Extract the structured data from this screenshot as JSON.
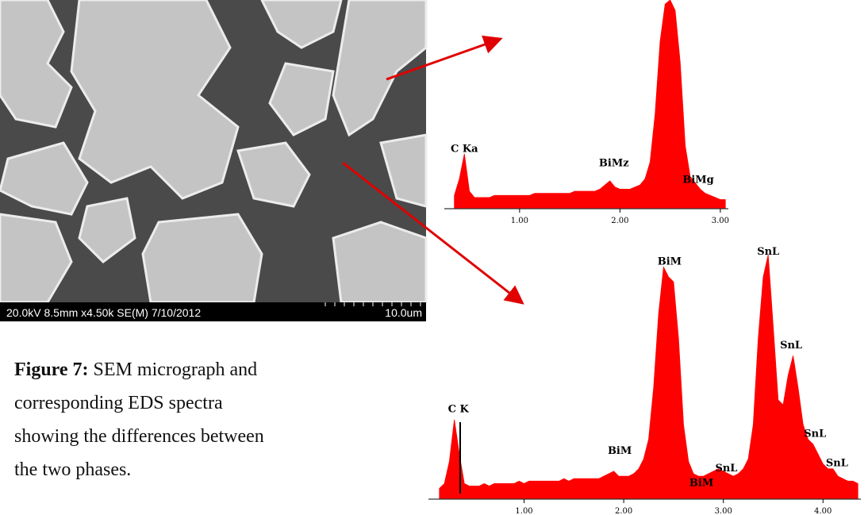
{
  "figure": {
    "label": "Figure 7:",
    "caption": "SEM micrograph and corresponding EDS spectra showing the differences between the two phases."
  },
  "micrograph": {
    "info": "20.0kV 8.5mm x4.50k SE(M) 7/10/2012",
    "scale": "10.0um"
  },
  "chart_data": [
    {
      "type": "area",
      "color": "#ff0000",
      "x": [
        0.35,
        0.4,
        0.45,
        0.5,
        0.55,
        0.6,
        0.65,
        0.7,
        0.75,
        0.8,
        0.85,
        0.9,
        0.95,
        1.0,
        1.05,
        1.1,
        1.15,
        1.2,
        1.25,
        1.3,
        1.35,
        1.4,
        1.45,
        1.5,
        1.55,
        1.6,
        1.65,
        1.7,
        1.75,
        1.8,
        1.85,
        1.9,
        1.95,
        2.0,
        2.05,
        2.1,
        2.15,
        2.2,
        2.25,
        2.3,
        2.35,
        2.4,
        2.45,
        2.5,
        2.55,
        2.6,
        2.65,
        2.7,
        2.75,
        2.8,
        2.85,
        2.9,
        2.95,
        3.0,
        3.05
      ],
      "values": [
        6,
        14,
        26,
        8,
        5,
        5,
        5,
        5,
        6,
        6,
        6,
        6,
        6,
        6,
        6,
        6,
        7,
        7,
        7,
        7,
        7,
        7,
        7,
        7,
        8,
        8,
        8,
        8,
        8,
        9,
        11,
        13,
        10,
        9,
        9,
        9,
        10,
        11,
        14,
        22,
        45,
        80,
        98,
        100,
        95,
        70,
        30,
        15,
        12,
        9,
        7,
        6,
        5,
        4,
        4
      ],
      "xlim": [
        0.25,
        3.08
      ],
      "ylim": [
        0,
        100
      ],
      "xticks": [
        {
          "value": 1,
          "label": "1.00"
        },
        {
          "value": 2,
          "label": "2.00"
        },
        {
          "value": 3,
          "label": "3.00"
        }
      ],
      "annotations": [
        {
          "text": "C Ka",
          "x": 0.45,
          "y": 27
        },
        {
          "text": "BiMz",
          "x": 1.94,
          "y": 20
        },
        {
          "text": "BiMg",
          "x": 2.78,
          "y": 12
        }
      ]
    },
    {
      "type": "area",
      "color": "#ff0000",
      "x": [
        0.15,
        0.2,
        0.25,
        0.3,
        0.35,
        0.4,
        0.45,
        0.5,
        0.55,
        0.6,
        0.65,
        0.7,
        0.75,
        0.8,
        0.85,
        0.9,
        0.95,
        1.0,
        1.05,
        1.1,
        1.15,
        1.2,
        1.25,
        1.3,
        1.35,
        1.4,
        1.45,
        1.5,
        1.55,
        1.6,
        1.65,
        1.7,
        1.75,
        1.8,
        1.85,
        1.9,
        1.95,
        2.0,
        2.05,
        2.1,
        2.15,
        2.2,
        2.25,
        2.3,
        2.35,
        2.4,
        2.45,
        2.5,
        2.55,
        2.6,
        2.65,
        2.7,
        2.75,
        2.8,
        2.85,
        2.9,
        2.95,
        3.0,
        3.05,
        3.1,
        3.15,
        3.2,
        3.25,
        3.3,
        3.35,
        3.4,
        3.45,
        3.5,
        3.55,
        3.6,
        3.65,
        3.7,
        3.75,
        3.8,
        3.85,
        3.9,
        3.95,
        4.0,
        4.05,
        4.1,
        4.15,
        4.2,
        4.25,
        4.3,
        4.35
      ],
      "values": [
        4,
        6,
        15,
        32,
        18,
        6,
        5,
        5,
        5,
        6,
        5,
        6,
        6,
        6,
        6,
        6,
        7,
        6,
        7,
        7,
        7,
        7,
        7,
        7,
        7,
        8,
        7,
        8,
        8,
        8,
        8,
        8,
        8,
        9,
        10,
        11,
        9,
        9,
        9,
        10,
        12,
        16,
        24,
        45,
        75,
        94,
        90,
        88,
        65,
        30,
        15,
        10,
        9,
        9,
        10,
        11,
        12,
        11,
        10,
        9,
        10,
        12,
        16,
        30,
        65,
        90,
        99,
        70,
        40,
        38,
        50,
        58,
        45,
        30,
        24,
        22,
        18,
        14,
        12,
        12,
        9,
        8,
        7,
        7,
        6
      ],
      "xlim": [
        0.04,
        4.38
      ],
      "ylim": [
        0,
        100
      ],
      "xticks": [
        {
          "value": 1,
          "label": "1.00"
        },
        {
          "value": 2,
          "label": "2.00"
        },
        {
          "value": 3,
          "label": "3.00"
        },
        {
          "value": 4,
          "label": "4.00"
        }
      ],
      "annotations": [
        {
          "text": "C K",
          "x": 0.34,
          "y": 35
        },
        {
          "text": "BiM",
          "x": 1.96,
          "y": 18
        },
        {
          "text": "BiM",
          "x": 2.46,
          "y": 95
        },
        {
          "text": "BiM",
          "x": 2.78,
          "y": 5
        },
        {
          "text": "SnL",
          "x": 3.03,
          "y": 11
        },
        {
          "text": "SnL",
          "x": 3.45,
          "y": 99
        },
        {
          "text": "SnL",
          "x": 3.68,
          "y": 61
        },
        {
          "text": "SnL",
          "x": 3.92,
          "y": 25
        },
        {
          "text": "SnL",
          "x": 4.14,
          "y": 13
        }
      ]
    }
  ]
}
